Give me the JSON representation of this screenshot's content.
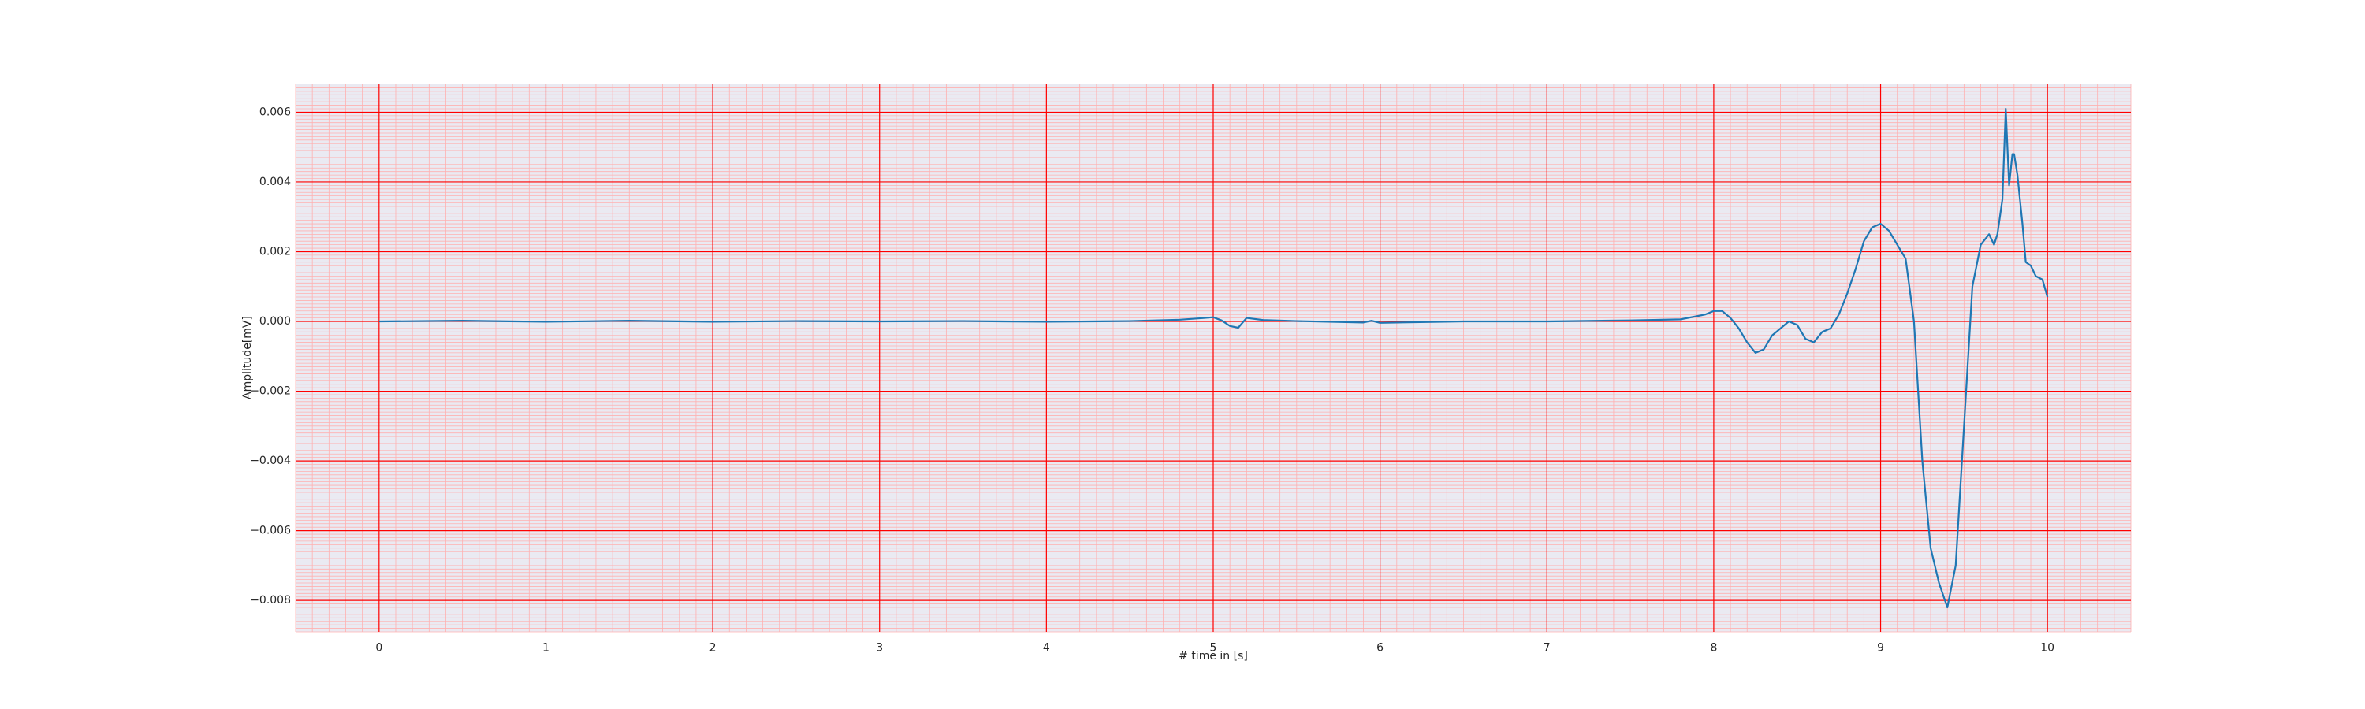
{
  "chart_data": {
    "type": "line",
    "title": "",
    "xlabel": "# time in [s]",
    "ylabel": "Amplitude[mV]",
    "xlim": [
      -0.5,
      10.5
    ],
    "ylim": [
      -0.0089,
      0.0068
    ],
    "xticks": [
      0,
      1,
      2,
      3,
      4,
      5,
      6,
      7,
      8,
      9,
      10
    ],
    "yticks": [
      -0.008,
      -0.006,
      -0.004,
      -0.002,
      0.0,
      0.002,
      0.004,
      0.006
    ],
    "xtick_labels": [
      "0",
      "1",
      "2",
      "3",
      "4",
      "5",
      "6",
      "7",
      "8",
      "9",
      "10"
    ],
    "ytick_labels": [
      "−0.008",
      "−0.006",
      "−0.004",
      "−0.002",
      "0.000",
      "0.002",
      "0.004",
      "0.006"
    ],
    "grid": true,
    "minor_grid": true,
    "colors": {
      "background": "#eaeaf2",
      "major_grid": "#ff0000",
      "minor_grid": "#ffb0b0",
      "line": "#1f77b4"
    },
    "series": [
      {
        "x": [
          0,
          0.5,
          1,
          1.5,
          2,
          2.5,
          3,
          3.5,
          4,
          4.5,
          4.8,
          4.95,
          5.0,
          5.05,
          5.1,
          5.15,
          5.2,
          5.3,
          5.5,
          5.9,
          5.95,
          6.0,
          6.5,
          7.0,
          7.5,
          7.8,
          7.95,
          8.0,
          8.05,
          8.1,
          8.15,
          8.2,
          8.25,
          8.3,
          8.35,
          8.4,
          8.45,
          8.5,
          8.55,
          8.6,
          8.65,
          8.7,
          8.75,
          8.8,
          8.85,
          8.9,
          8.95,
          9.0,
          9.05,
          9.1,
          9.15,
          9.2,
          9.25,
          9.3,
          9.35,
          9.4,
          9.45,
          9.5,
          9.55,
          9.6,
          9.65,
          9.68,
          9.7,
          9.73,
          9.75,
          9.77,
          9.79,
          9.8,
          9.82,
          9.85,
          9.87,
          9.9,
          9.93,
          9.97,
          10.0
        ],
        "y": [
          0.0,
          2e-05,
          -1e-05,
          2e-05,
          -1e-05,
          1e-05,
          0.0,
          1e-05,
          -1e-05,
          1e-05,
          5e-05,
          0.0001,
          0.00012,
          3e-05,
          -0.00013,
          -0.00018,
          0.0001,
          4e-05,
          1e-05,
          -3e-05,
          2e-05,
          -4e-05,
          0.0,
          0.0,
          3e-05,
          6e-05,
          0.0002,
          0.0003,
          0.0003,
          0.0001,
          -0.0002,
          -0.0006,
          -0.0009,
          -0.0008,
          -0.0004,
          -0.0002,
          0.0,
          -0.0001,
          -0.0005,
          -0.0006,
          -0.0003,
          -0.0002,
          0.0002,
          0.0008,
          0.0015,
          0.0023,
          0.0027,
          0.0028,
          0.0026,
          0.0022,
          0.0018,
          0.0,
          -0.004,
          -0.0065,
          -0.0075,
          -0.0082,
          -0.007,
          -0.003,
          0.001,
          0.0022,
          0.0025,
          0.0022,
          0.0025,
          0.0035,
          0.0061,
          0.0039,
          0.0048,
          0.0048,
          0.0042,
          0.0028,
          0.0017,
          0.0016,
          0.0013,
          0.0012,
          0.0007
        ]
      }
    ]
  }
}
